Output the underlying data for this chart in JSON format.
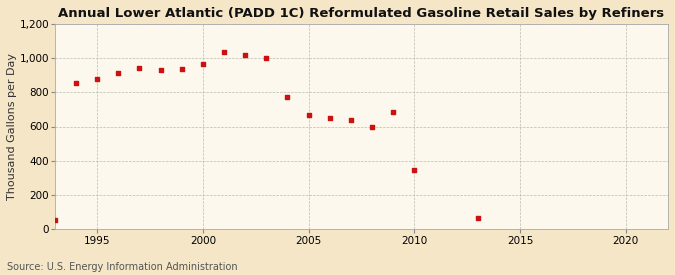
{
  "title": "Annual Lower Atlantic (PADD 1C) Reformulated Gasoline Retail Sales by Refiners",
  "ylabel": "Thousand Gallons per Day",
  "source": "Source: U.S. Energy Information Administration",
  "background_color": "#f5e6c8",
  "plot_background_color": "#fdf8ee",
  "marker_color": "#cc1111",
  "years": [
    1993,
    1994,
    1995,
    1996,
    1997,
    1998,
    1999,
    2000,
    2001,
    2002,
    2003,
    2004,
    2005,
    2006,
    2007,
    2008,
    2009,
    2010,
    2013
  ],
  "values": [
    55,
    855,
    880,
    910,
    940,
    930,
    935,
    965,
    1035,
    1020,
    1000,
    770,
    670,
    650,
    640,
    600,
    685,
    345,
    65
  ],
  "xlim": [
    1993,
    2022
  ],
  "ylim": [
    0,
    1200
  ],
  "yticks": [
    0,
    200,
    400,
    600,
    800,
    1000,
    1200
  ],
  "xticks": [
    1995,
    2000,
    2005,
    2010,
    2015,
    2020
  ],
  "title_fontsize": 9.5,
  "label_fontsize": 8,
  "tick_fontsize": 7.5,
  "source_fontsize": 7
}
